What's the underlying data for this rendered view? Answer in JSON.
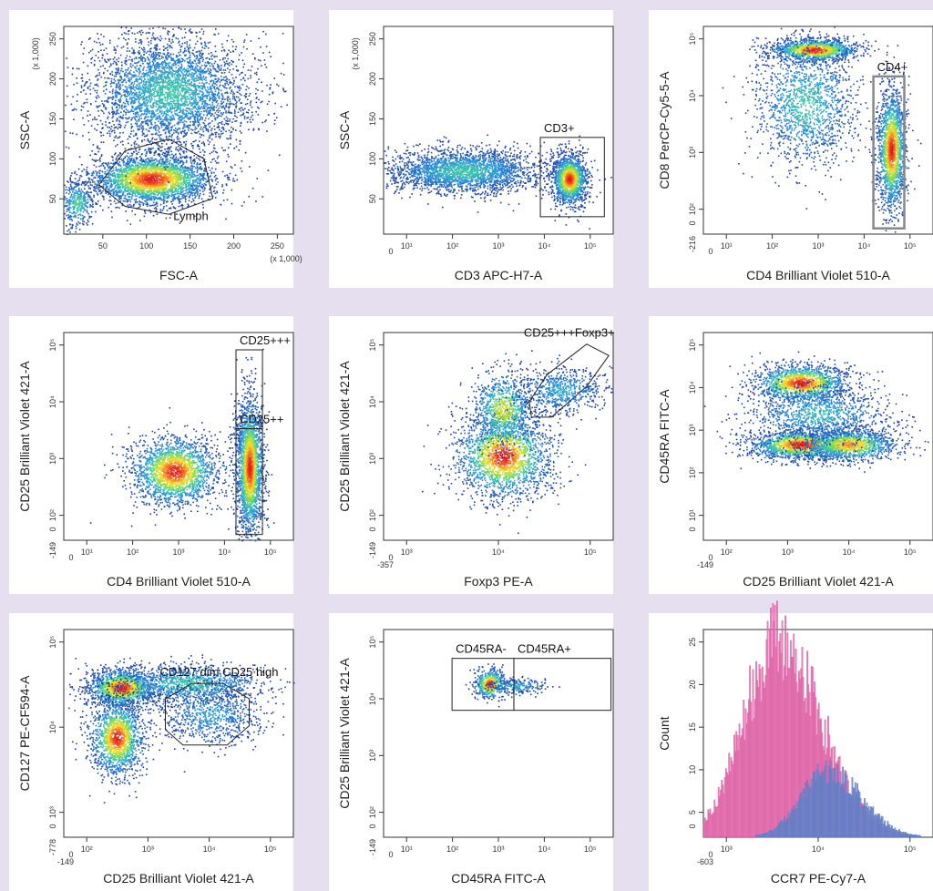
{
  "chart_data": [
    {
      "id": "p1",
      "type": "scatter",
      "density": true,
      "xlabel": "FSC-A",
      "ylabel": "SSC-A",
      "x_ticks": [
        "50",
        "100",
        "150",
        "200",
        "250"
      ],
      "x_multiplier": "(x 1,000)",
      "y_ticks": [
        "50",
        "100",
        "150",
        "200",
        "250"
      ],
      "y_multiplier": "(x 1,000)",
      "xlim": [
        0,
        262
      ],
      "ylim": [
        0,
        262
      ],
      "populations": [
        {
          "x": 100,
          "y": 70,
          "sx": 35,
          "sy": 16,
          "n": 3000,
          "peak": 1.0
        },
        {
          "x": 120,
          "y": 180,
          "sx": 45,
          "sy": 35,
          "n": 3800,
          "peak": 0.45
        },
        {
          "x": 15,
          "y": 40,
          "sx": 10,
          "sy": 15,
          "n": 400,
          "peak": 0.5
        }
      ],
      "gates": [
        {
          "label": "Lymph",
          "shape": "polygon",
          "points": [
            [
              40,
              62
            ],
            [
              70,
              35
            ],
            [
              120,
              25
            ],
            [
              170,
              45
            ],
            [
              160,
              95
            ],
            [
              120,
              120
            ],
            [
              70,
              105
            ]
          ]
        }
      ]
    },
    {
      "id": "p2",
      "type": "scatter",
      "density": true,
      "xlabel": "CD3 APC-H7-A",
      "ylabel": "SSC-A",
      "x_ticks": [
        "10¹",
        "10²",
        "10³",
        "10⁴",
        "10⁵"
      ],
      "x_zero": "0",
      "y_ticks": [
        "50",
        "100",
        "150",
        "200",
        "250"
      ],
      "y_multiplier": "(x 1,000)",
      "xlim": [
        0,
        5.2
      ],
      "ylim": [
        0,
        262
      ],
      "populations": [
        {
          "x": 1.8,
          "y": 80,
          "sx": 0.9,
          "sy": 14,
          "n": 2600,
          "peak": 0.45
        },
        {
          "x": 4.2,
          "y": 70,
          "sx": 0.2,
          "sy": 16,
          "n": 1500,
          "peak": 1.0
        }
      ],
      "gates": [
        {
          "label": "CD3+",
          "shape": "rect",
          "points": [
            [
              3.55,
              22
            ],
            [
              5.0,
              122
            ]
          ]
        }
      ]
    },
    {
      "id": "p3",
      "type": "scatter",
      "density": true,
      "xlabel": "CD4 Brilliant Violet 510-A",
      "ylabel": "CD8 PerCP-Cy5-5-A",
      "x_ticks": [
        "10¹",
        "10²",
        "10³",
        "10⁴",
        "10⁵"
      ],
      "x_zero": "0",
      "y_ticks": [
        "10²",
        "10³",
        "10⁴",
        "10⁵"
      ],
      "y_zero": "0",
      "y_min_label": "-216",
      "xlim": [
        0,
        5.2
      ],
      "ylim": [
        0,
        5.4
      ],
      "populations": [
        {
          "x": 2.5,
          "y": 4.8,
          "sx": 0.5,
          "sy": 0.15,
          "n": 1300,
          "peak": 1.0
        },
        {
          "x": 2.3,
          "y": 3.4,
          "sx": 0.6,
          "sy": 0.8,
          "n": 1500,
          "peak": 0.45
        },
        {
          "x": 4.25,
          "y": 2.2,
          "sx": 0.16,
          "sy": 0.8,
          "n": 1800,
          "peak": 1.0
        }
      ],
      "gates": [
        {
          "label": "CD4+",
          "shape": "rect",
          "points": [
            [
              3.85,
              0.15
            ],
            [
              4.55,
              4.1
            ]
          ]
        }
      ]
    },
    {
      "id": "p4",
      "type": "scatter",
      "density": true,
      "xlabel": "CD4 Brilliant Violet 510-A",
      "ylabel": "CD25 Brilliant Violet 421-A",
      "x_ticks": [
        "10¹",
        "10²",
        "10³",
        "10⁴",
        "10⁵"
      ],
      "x_zero": "0",
      "y_ticks": [
        "10²",
        "10³",
        "10⁴",
        "10⁵"
      ],
      "y_zero": "0",
      "y_min_label": "-149",
      "xlim": [
        0,
        5.2
      ],
      "ylim": [
        0,
        5.4
      ],
      "populations": [
        {
          "x": 2.5,
          "y": 1.8,
          "sx": 0.5,
          "sy": 0.45,
          "n": 2100,
          "peak": 1.0
        },
        {
          "x": 4.2,
          "y": 1.9,
          "sx": 0.15,
          "sy": 0.9,
          "n": 2400,
          "peak": 1.0
        }
      ],
      "gates": [
        {
          "label": "CD25+++",
          "shape": "rect",
          "points": [
            [
              3.9,
              2.9
            ],
            [
              4.5,
              4.95
            ]
          ]
        },
        {
          "label": "CD25++",
          "shape": "rect",
          "points": [
            [
              3.9,
              0.15
            ],
            [
              4.5,
              2.9
            ]
          ]
        }
      ]
    },
    {
      "id": "p5",
      "type": "scatter",
      "density": true,
      "xlabel": "Foxp3 PE-A",
      "ylabel": "CD25 Brilliant Violet 421-A",
      "x_ticks": [
        "10³",
        "10⁴",
        "10⁵"
      ],
      "x_zero": "0",
      "x_min_label": "-357",
      "y_ticks": [
        "10²",
        "10³",
        "10⁴",
        "10⁵"
      ],
      "y_zero": "0",
      "y_min_label": "-149",
      "xlim": [
        0,
        5.2
      ],
      "ylim": [
        0,
        5.4
      ],
      "populations": [
        {
          "x": 2.7,
          "y": 2.2,
          "sx": 0.55,
          "sy": 0.55,
          "n": 2100,
          "peak": 1.0
        },
        {
          "x": 2.7,
          "y": 3.4,
          "sx": 0.35,
          "sy": 0.5,
          "n": 900,
          "peak": 0.7
        },
        {
          "x": 4.0,
          "y": 3.9,
          "sx": 0.5,
          "sy": 0.3,
          "n": 700,
          "peak": 0.35
        }
      ],
      "gates": [
        {
          "label": "CD25+++Foxp3+",
          "shape": "polygon",
          "points": [
            [
              3.3,
              3.6
            ],
            [
              3.7,
              4.3
            ],
            [
              4.6,
              5.1
            ],
            [
              5.1,
              4.8
            ],
            [
              4.6,
              4.0
            ],
            [
              3.8,
              3.2
            ],
            [
              3.35,
              3.2
            ]
          ]
        }
      ]
    },
    {
      "id": "p6",
      "type": "scatter",
      "density": true,
      "xlabel": "CD25 Brilliant Violet 421-A",
      "ylabel": "CD45RA FITC-A",
      "x_ticks": [
        "10²",
        "10³",
        "10⁴",
        "10⁵"
      ],
      "x_zero": "0",
      "x_min_label": "-149",
      "y_ticks": [
        "10¹",
        "10²",
        "10³",
        "10⁴",
        "10⁵"
      ],
      "y_zero": "0",
      "xlim": [
        0,
        5.2
      ],
      "ylim": [
        0,
        5.4
      ],
      "populations": [
        {
          "x": 2.2,
          "y": 4.1,
          "sx": 0.55,
          "sy": 0.25,
          "n": 1500,
          "peak": 1.0
        },
        {
          "x": 2.2,
          "y": 2.5,
          "sx": 0.6,
          "sy": 0.2,
          "n": 1600,
          "peak": 1.0
        },
        {
          "x": 3.3,
          "y": 2.5,
          "sx": 0.55,
          "sy": 0.22,
          "n": 1200,
          "peak": 0.85
        },
        {
          "x": 2.6,
          "y": 3.3,
          "sx": 0.8,
          "sy": 0.4,
          "n": 1100,
          "peak": 0.4
        }
      ],
      "gates": []
    },
    {
      "id": "p7",
      "type": "scatter",
      "density": true,
      "xlabel": "CD25 Brilliant Violet 421-A",
      "ylabel": "CD127 PE-CF594-A",
      "x_ticks": [
        "10²",
        "10³",
        "10⁴",
        "10⁵"
      ],
      "x_zero": "0",
      "x_min_label": "-149",
      "y_ticks": [
        "10³",
        "10⁴",
        "10⁵"
      ],
      "y_zero": "0",
      "y_min_label": "-778",
      "xlim": [
        0,
        5.2
      ],
      "ylim": [
        0,
        5.4
      ],
      "populations": [
        {
          "x": 1.3,
          "y": 3.9,
          "sx": 0.4,
          "sy": 0.25,
          "n": 1500,
          "peak": 1.0
        },
        {
          "x": 1.2,
          "y": 2.6,
          "sx": 0.3,
          "sy": 0.5,
          "n": 1500,
          "peak": 1.0
        },
        {
          "x": 2.8,
          "y": 4.0,
          "sx": 0.9,
          "sy": 0.25,
          "n": 1200,
          "peak": 0.45
        },
        {
          "x": 3.3,
          "y": 3.2,
          "sx": 0.6,
          "sy": 0.4,
          "n": 800,
          "peak": 0.3
        }
      ],
      "gates": [
        {
          "label": "CD127 dim CD25 high",
          "shape": "polygon",
          "points": [
            [
              2.3,
              3.6
            ],
            [
              2.9,
              4.0
            ],
            [
              3.6,
              4.0
            ],
            [
              4.2,
              3.6
            ],
            [
              4.2,
              2.9
            ],
            [
              3.7,
              2.4
            ],
            [
              2.7,
              2.4
            ],
            [
              2.3,
              2.8
            ]
          ]
        }
      ]
    },
    {
      "id": "p8",
      "type": "scatter",
      "density": true,
      "xlabel": "CD45RA FITC-A",
      "ylabel": "CD25 Brilliant Violet 421-A",
      "x_ticks": [
        "10¹",
        "10²",
        "10³",
        "10⁴",
        "10⁵"
      ],
      "x_zero": "0",
      "y_ticks": [
        "10²",
        "10³",
        "10⁴",
        "10⁵"
      ],
      "y_zero": "0",
      "y_min_label": "-149",
      "xlim": [
        0,
        5.2
      ],
      "ylim": [
        0,
        5.4
      ],
      "populations": [
        {
          "x": 2.4,
          "y": 4.0,
          "sx": 0.18,
          "sy": 0.2,
          "n": 500,
          "peak": 1.0
        },
        {
          "x": 3.0,
          "y": 3.95,
          "sx": 0.35,
          "sy": 0.1,
          "n": 250,
          "peak": 0.35
        }
      ],
      "gates": [
        {
          "label": "CD45RA-",
          "shape": "rect",
          "points": [
            [
              1.55,
              3.3
            ],
            [
              2.95,
              4.65
            ]
          ]
        },
        {
          "label": "CD45RA+",
          "shape": "rect",
          "points": [
            [
              2.95,
              3.3
            ],
            [
              5.15,
              4.65
            ]
          ]
        }
      ]
    },
    {
      "id": "p9",
      "type": "histogram",
      "xlabel": "CCR7 PE-Cy7-A",
      "ylabel": "Count",
      "x_ticks": [
        "10³",
        "10⁴",
        "10⁵"
      ],
      "x_zero": "0",
      "x_min_label": "-603",
      "y_ticks": [
        "5",
        "10",
        "15",
        "20",
        "25"
      ],
      "y_zero": "0",
      "xlim": [
        0,
        5.2
      ],
      "ylim": [
        0,
        28
      ],
      "series": [
        {
          "color": "#d8388a",
          "fill": "#e27ab5",
          "center": 1.65,
          "sigma": 0.75,
          "peak": 27,
          "spread_right": 1.1
        },
        {
          "color": "#2f6fc4",
          "fill": "#7e86c8",
          "center": 2.8,
          "sigma": 0.6,
          "peak": 9,
          "spread_right": 0.9
        }
      ]
    }
  ]
}
